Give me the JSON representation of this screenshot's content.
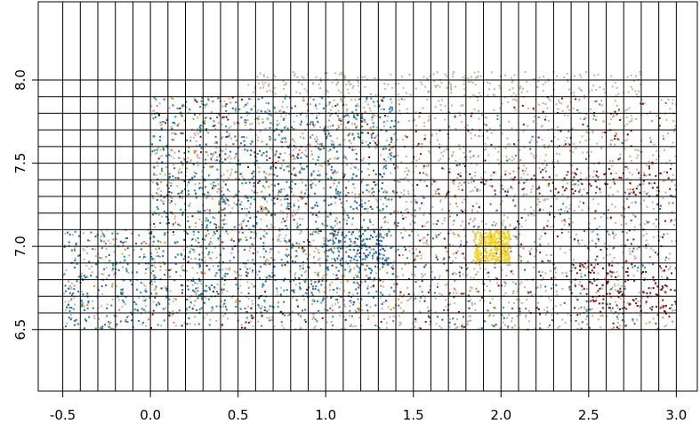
{
  "chart_data": {
    "type": "scatter",
    "title": "",
    "xlabel": "",
    "ylabel": "",
    "xlim": [
      -0.64,
      3.12
    ],
    "ylim": [
      6.13,
      8.47
    ],
    "x_ticks": [
      -0.5,
      0.0,
      0.5,
      1.0,
      1.5,
      2.0,
      2.5,
      3.0
    ],
    "y_ticks": [
      6.5,
      7.0,
      7.5,
      8.0
    ],
    "x_tick_labels": [
      "-0.5",
      "0.0",
      "0.5",
      "1.0",
      "1.5",
      "2.0",
      "2.5",
      "3.0"
    ],
    "y_tick_labels": [
      "6.5",
      "7.0",
      "7.5",
      "8.0"
    ],
    "grid": {
      "vertical_lines_x": [
        -0.5,
        -0.4,
        -0.3,
        -0.2,
        -0.1,
        0.0,
        0.1,
        0.2,
        0.3,
        0.4,
        0.5,
        0.6,
        0.7,
        0.8,
        0.9,
        1.0,
        1.1,
        1.2,
        1.3,
        1.4,
        1.5,
        1.6,
        1.7,
        1.8,
        1.9,
        2.0,
        2.1,
        2.2,
        2.3,
        2.4,
        2.5,
        2.6,
        2.7,
        2.8,
        2.9,
        3.0
      ],
      "horizontal_lines_y": [
        6.5,
        6.6,
        6.7,
        6.8,
        6.9,
        7.0,
        7.1,
        7.2,
        7.3,
        7.4,
        7.5,
        7.6,
        7.7,
        7.8,
        7.9,
        8.0
      ]
    },
    "colors": {
      "background_points": "#c4b4a2",
      "blue": "#1f6fb5",
      "teal": "#1a9a8f",
      "orange": "#e08a1e",
      "dark_red": "#8b1010",
      "yellow": "#f6d21a"
    },
    "series": [
      {
        "color_key": "background_points",
        "regions": [
          {
            "x": [
              0.0,
              3.0
            ],
            "y": [
              6.5,
              7.9
            ],
            "n": 2200
          },
          {
            "x": [
              0.5,
              2.8
            ],
            "y": [
              7.9,
              8.05
            ],
            "n": 260
          },
          {
            "x": [
              -0.5,
              0.0
            ],
            "y": [
              6.5,
              7.1
            ],
            "n": 120
          }
        ]
      },
      {
        "color_key": "blue",
        "regions": [
          {
            "x": [
              0.0,
              1.4
            ],
            "y": [
              6.6,
              7.9
            ],
            "n": 700
          },
          {
            "x": [
              -0.5,
              0.0
            ],
            "y": [
              6.5,
              7.1
            ],
            "n": 110
          },
          {
            "x": [
              1.0,
              1.35
            ],
            "y": [
              6.85,
              7.1
            ],
            "n": 120
          },
          {
            "x": [
              1.4,
              3.0
            ],
            "y": [
              6.5,
              7.4
            ],
            "n": 160
          }
        ]
      },
      {
        "color_key": "teal",
        "regions": [
          {
            "x": [
              0.0,
              1.4
            ],
            "y": [
              6.5,
              7.9
            ],
            "n": 430
          },
          {
            "x": [
              -0.5,
              0.0
            ],
            "y": [
              6.5,
              7.1
            ],
            "n": 70
          },
          {
            "x": [
              1.4,
              3.0
            ],
            "y": [
              6.5,
              7.9
            ],
            "n": 130
          }
        ]
      },
      {
        "color_key": "orange",
        "regions": [
          {
            "x": [
              0.0,
              1.4
            ],
            "y": [
              6.5,
              7.9
            ],
            "n": 200
          },
          {
            "x": [
              -0.5,
              0.0
            ],
            "y": [
              6.5,
              7.1
            ],
            "n": 30
          },
          {
            "x": [
              1.4,
              3.0
            ],
            "y": [
              6.5,
              7.9
            ],
            "n": 90
          }
        ]
      },
      {
        "color_key": "dark_red",
        "regions": [
          {
            "x": [
              0.0,
              3.0
            ],
            "y": [
              6.5,
              7.9
            ],
            "n": 380
          },
          {
            "x": [
              1.6,
              3.0
            ],
            "y": [
              7.3,
              7.45
            ],
            "n": 90
          },
          {
            "x": [
              2.4,
              3.0
            ],
            "y": [
              6.6,
              6.9
            ],
            "n": 110
          }
        ]
      },
      {
        "color_key": "yellow",
        "regions": [
          {
            "x": [
              1.85,
              2.05
            ],
            "y": [
              6.9,
              7.1
            ],
            "n": 320
          }
        ]
      }
    ]
  }
}
